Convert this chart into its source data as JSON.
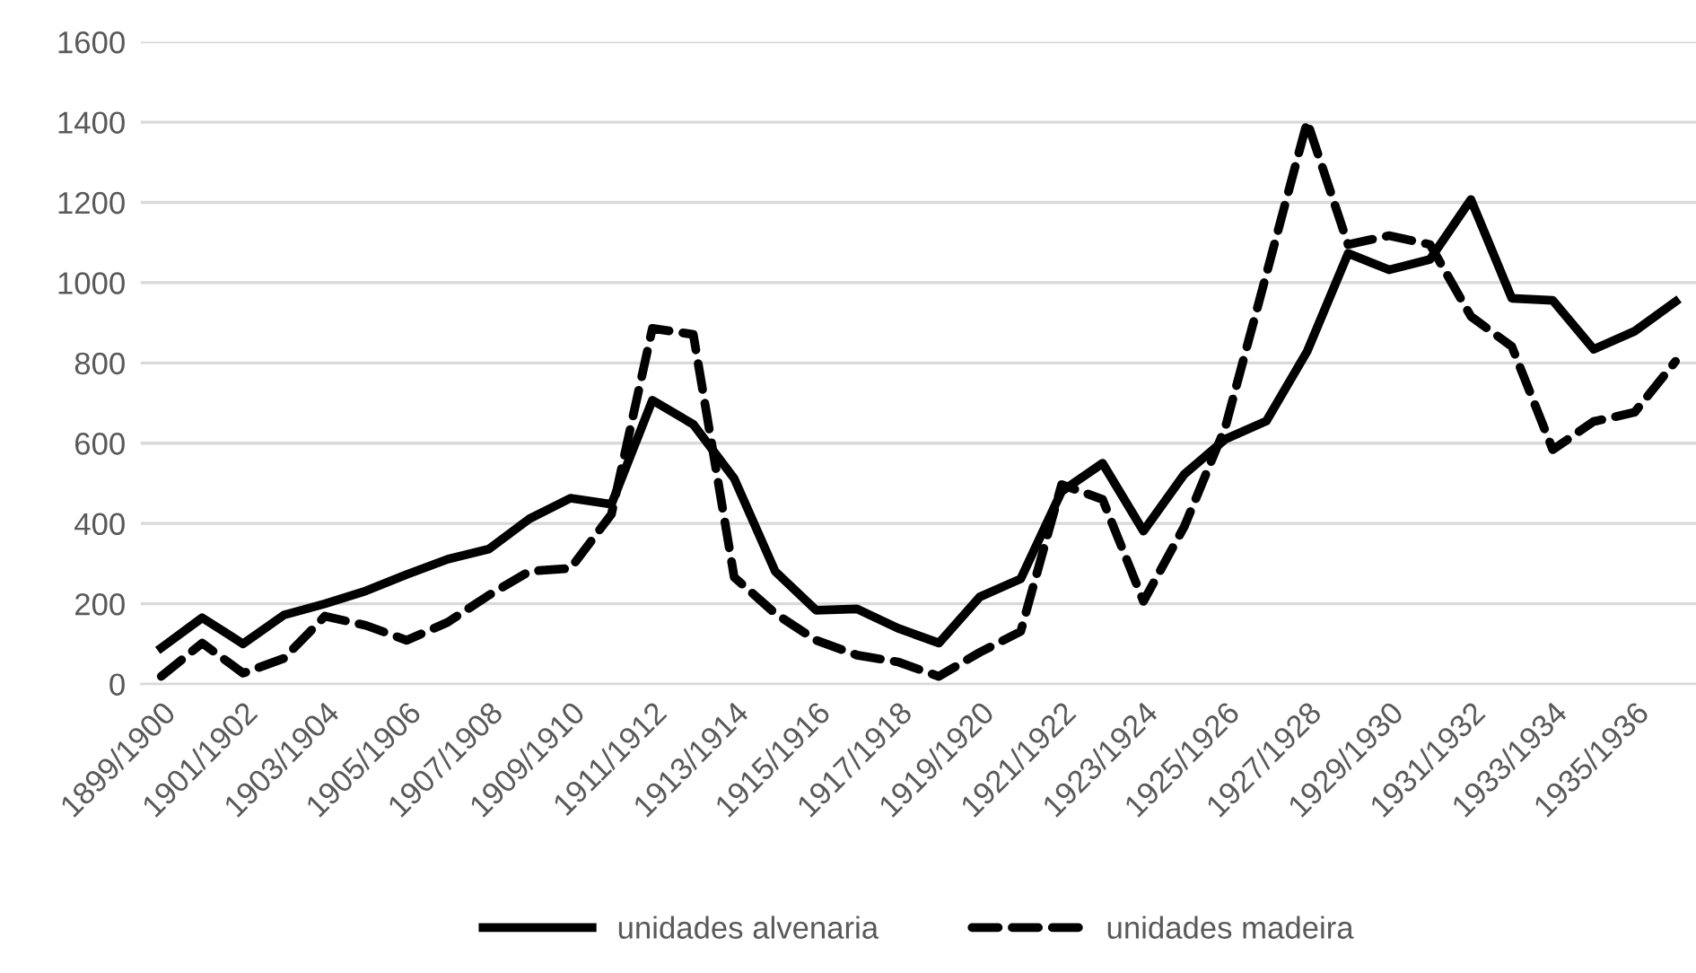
{
  "chart_data": {
    "type": "line",
    "categories": [
      "1899/1900",
      null,
      "1901/1902",
      null,
      "1903/1904",
      null,
      "1905/1906",
      null,
      "1907/1908",
      null,
      "1909/1910",
      null,
      "1911/1912",
      null,
      "1913/1914",
      null,
      "1915/1916",
      null,
      "1917/1918",
      null,
      "1919/1920",
      null,
      "1921/1922",
      null,
      "1923/1924",
      null,
      "1925/1926",
      null,
      "1927/1928",
      null,
      "1929/1930",
      null,
      "1931/1932",
      null,
      "1933/1934",
      null,
      "1935/1936",
      null
    ],
    "series": [
      {
        "name": "unidades alvenaria",
        "color": "#000000",
        "line_style": "solid",
        "values": [
          90,
          165,
          100,
          172,
          200,
          232,
          273,
          311,
          336,
          412,
          463,
          448,
          707,
          647,
          512,
          281,
          184,
          187,
          139,
          102,
          217,
          262,
          480,
          550,
          381,
          523,
          610,
          655,
          829,
          1073,
          1032,
          1058,
          1207,
          961,
          956,
          834,
          879,
          953
        ]
      },
      {
        "name": "unidades madeira",
        "color": "#000000",
        "line_style": "dashed",
        "values": [
          19,
          102,
          27,
          64,
          169,
          146,
          109,
          154,
          221,
          281,
          288,
          423,
          886,
          871,
          266,
          176,
          109,
          72,
          55,
          19,
          79,
          131,
          497,
          460,
          206,
          393,
          640,
          1020,
          1401,
          1095,
          1117,
          1095,
          916,
          841,
          584,
          654,
          677,
          804
        ]
      }
    ],
    "ylim": [
      0,
      1600
    ],
    "yticks": [
      0,
      200,
      400,
      600,
      800,
      1000,
      1200,
      1400,
      1600
    ],
    "grid": "y",
    "legend": "bottom",
    "marker": "none"
  }
}
